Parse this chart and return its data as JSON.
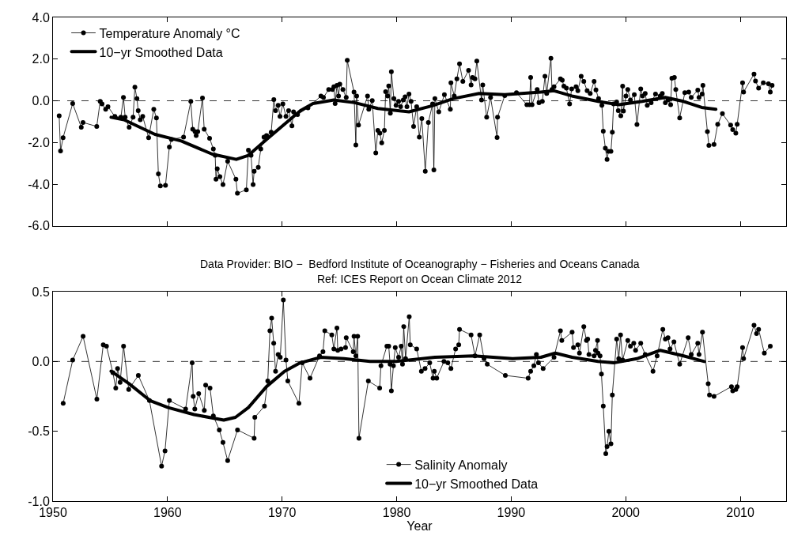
{
  "chart_data": [
    {
      "type": "line",
      "xlim": [
        1950,
        2014
      ],
      "xticks": [
        {
          "value": 1950,
          "label": null
        },
        {
          "value": 1960,
          "label": null
        },
        {
          "value": 1970,
          "label": null
        },
        {
          "value": 1980,
          "label": null
        },
        {
          "value": 1990,
          "label": null
        },
        {
          "value": 2000,
          "label": null
        },
        {
          "value": 2010,
          "label": null
        }
      ],
      "ylim": [
        -6,
        4
      ],
      "yticks": [
        {
          "value": -6,
          "label": "-6.0"
        },
        {
          "value": -4,
          "label": "-4.0"
        },
        {
          "value": -2,
          "label": "-2.0"
        },
        {
          "value": 0,
          "label": "0.0"
        },
        {
          "value": 2,
          "label": "2.0"
        },
        {
          "value": 4,
          "label": "4.0"
        }
      ],
      "tick_labels": "y",
      "legend": "top left",
      "ref_lines": [
        {
          "axis": "y",
          "value": 0,
          "color": "#000000",
          "line_style": "dashed"
        }
      ],
      "series": [
        {
          "name": "Temperature Anomaly °C",
          "color": "#000000",
          "marker": "circle",
          "line_style": "solid",
          "x": [
            1950.54,
            1950.66,
            1950.88,
            1951.72,
            1952.47,
            1952.62,
            1953.82,
            1954.12,
            1954.28,
            1954.6,
            1954.8,
            1955.4,
            1955.93,
            1956.15,
            1956.3,
            1956.65,
            1956.99,
            1957.15,
            1957.33,
            1957.44,
            1957.62,
            1957.83,
            1958.35,
            1958.8,
            1959.03,
            1959.2,
            1959.37,
            1959.82,
            1960.16,
            1960.34,
            1961.4,
            1962.03,
            1962.2,
            1962.4,
            1962.5,
            1962.64,
            1963.05,
            1963.2,
            1963.67,
            1964.0,
            1964.16,
            1964.23,
            1964.34,
            1964.57,
            1964.84,
            1965.25,
            1965.97,
            1966.1,
            1966.88,
            1967.06,
            1967.29,
            1967.47,
            1967.56,
            1967.92,
            1968.14,
            1968.42,
            1968.64,
            1969.05,
            1969.28,
            1969.43,
            1969.66,
            1969.82,
            1970.07,
            1970.34,
            1970.57,
            1970.86,
            1971.0,
            1971.35,
            1972.26,
            1973.39,
            1973.61,
            1974.07,
            1974.4,
            1974.52,
            1974.63,
            1974.79,
            1974.93,
            1975.04,
            1975.31,
            1975.6,
            1975.69,
            1976.28,
            1976.44,
            1976.51,
            1976.67,
            1977.46,
            1977.57,
            1977.87,
            1978.18,
            1978.36,
            1978.54,
            1978.7,
            1978.93,
            1979.04,
            1979.22,
            1979.31,
            1979.45,
            1979.54,
            1979.76,
            1979.95,
            1980.17,
            1980.35,
            1980.58,
            1980.74,
            1980.9,
            1981.08,
            1981.26,
            1981.48,
            1981.75,
            1981.98,
            1982.2,
            1982.5,
            1982.77,
            1983.14,
            1983.25,
            1983.34,
            1983.68,
            1984.17,
            1984.69,
            1984.74,
            1985.03,
            1985.26,
            1985.49,
            1985.78,
            1986.28,
            1986.5,
            1986.62,
            1986.84,
            1987.0,
            1987.41,
            1987.52,
            1987.86,
            1988.2,
            1988.77,
            1988.81,
            1989.44,
            1990.46,
            1991.37,
            1991.59,
            1991.7,
            1991.82,
            1992.27,
            1992.43,
            1992.72,
            1992.95,
            1993.1,
            1993.47,
            1993.56,
            1993.74,
            1994.3,
            1994.46,
            1994.6,
            1994.82,
            1995.1,
            1995.28,
            1995.66,
            1995.82,
            1996.11,
            1996.34,
            1996.63,
            1996.9,
            1997.24,
            1997.4,
            1997.63,
            1997.92,
            1998.04,
            1998.22,
            1998.37,
            1998.49,
            1998.71,
            1998.83,
            1998.94,
            1999.21,
            1999.35,
            1999.57,
            1999.73,
            1999.8,
            2000.02,
            2000.18,
            2000.41,
            2000.75,
            2000.98,
            2001.31,
            2001.47,
            2001.7,
            2001.88,
            2002.22,
            2002.6,
            2003.01,
            2003.19,
            2003.46,
            2003.69,
            2003.92,
            2004.03,
            2004.25,
            2004.37,
            2004.71,
            2005.16,
            2005.5,
            2005.72,
            2006.29,
            2006.4,
            2006.67,
            2006.74,
            2007.13,
            2007.26,
            2007.71,
            2008.03,
            2008.44,
            2009.16,
            2009.34,
            2009.61,
            2009.73,
            2010.2,
            2010.29,
            2011.2,
            2011.33,
            2011.6,
            2012.01,
            2012.46,
            2012.62,
            2012.78
          ],
          "values": [
            -0.72,
            -2.41,
            -1.77,
            -0.13,
            -1.27,
            -1.04,
            -1.23,
            -0.03,
            -0.15,
            -0.41,
            -0.28,
            -0.75,
            -0.79,
            0.16,
            -0.79,
            -1.27,
            -0.79,
            0.65,
            0.1,
            -0.47,
            -0.91,
            -0.75,
            -1.77,
            -0.41,
            -0.82,
            -3.51,
            -4.08,
            -4.06,
            -2.22,
            -1.86,
            -1.74,
            -0.03,
            -1.36,
            -1.48,
            -1.67,
            -1.48,
            0.13,
            -1.36,
            -1.8,
            -2.31,
            -2.62,
            -3.76,
            -3.26,
            -3.64,
            -4.02,
            -2.9,
            -3.76,
            -4.44,
            -4.27,
            -2.37,
            -2.62,
            -4.02,
            -3.38,
            -3.19,
            -2.31,
            -1.74,
            -1.67,
            -1.51,
            0.06,
            -0.47,
            -0.22,
            -0.75,
            -0.15,
            -0.75,
            -0.47,
            -1.2,
            -0.53,
            -0.66,
            -0.34,
            0.23,
            0.16,
            0.54,
            0.54,
            0.67,
            -0.13,
            0.74,
            0.23,
            0.8,
            0.54,
            0.16,
            1.94,
            0.42,
            -2.12,
            0.23,
            -1.17,
            0.23,
            -0.41,
            0.01,
            -2.5,
            -1.42,
            -1.55,
            -2.02,
            -1.42,
            0.44,
            0.23,
            0.71,
            -0.6,
            1.39,
            0.1,
            -0.22,
            -0.03,
            -0.28,
            0.04,
            0.19,
            -0.28,
            0.32,
            -0.03,
            -1.23,
            -0.28,
            -1.74,
            -0.85,
            -3.38,
            -1.04,
            -0.15,
            -3.32,
            0.1,
            -0.53,
            0.29,
            -0.41,
            0.86,
            0.23,
            1.05,
            1.77,
            0.93,
            1.46,
            0.76,
            1.12,
            1.05,
            1.91,
            0.04,
            0.76,
            -0.79,
            0.16,
            -1.76,
            -0.79,
            0.25,
            0.39,
            -0.19,
            -0.19,
            1.12,
            -0.19,
            0.54,
            -0.09,
            -0.03,
            1.18,
            0.35,
            2.04,
            0.54,
            0.67,
            1.05,
            0.99,
            0.7,
            0.61,
            -0.15,
            0.57,
            0.67,
            0.48,
            1.18,
            0.93,
            0.48,
            0.35,
            0.93,
            0.52,
            0.1,
            -0.22,
            -1.46,
            -2.27,
            -2.81,
            -2.43,
            -2.43,
            -1.51,
            -0.15,
            -0.06,
            -0.47,
            -0.72,
            0.7,
            -0.49,
            0.23,
            0.54,
            0.04,
            0.29,
            -1.14,
            0.57,
            0.23,
            0.35,
            -0.22,
            -0.09,
            0.32,
            0.23,
            0.35,
            -0.09,
            0.04,
            -0.19,
            1.08,
            1.12,
            0.54,
            -0.82,
            0.39,
            0.42,
            0.16,
            0.51,
            0.16,
            0.32,
            0.74,
            -1.48,
            -2.14,
            -2.09,
            -1.13,
            -0.62,
            -1.17,
            -1.38,
            -1.55,
            -1.13,
            0.86,
            0.42,
            1.28,
            0.95,
            0.61,
            0.86,
            0.82,
            0.42,
            0.74
          ]
        },
        {
          "name": "10−yr Smoothed Data",
          "color": "#000000",
          "marker": "none",
          "line_style": "solid",
          "x": [
            1955.07,
            1956.2,
            1958.9,
            1961.2,
            1963.9,
            1966.0,
            1967.06,
            1968.64,
            1971.6,
            1972.7,
            1974.52,
            1976.33,
            1978.36,
            1981.08,
            1983.1,
            1984.92,
            1987.2,
            1989.44,
            1992.6,
            1993.74,
            1995.3,
            1997.6,
            1999.4,
            2001.43,
            2003.46,
            2005.05,
            2006.63,
            2007.87
          ],
          "values": [
            -0.79,
            -0.91,
            -1.61,
            -1.93,
            -2.56,
            -2.81,
            -2.62,
            -1.86,
            -0.47,
            -0.13,
            0.04,
            -0.09,
            -0.37,
            -0.53,
            -0.24,
            0.1,
            0.35,
            0.29,
            0.42,
            0.48,
            0.23,
            -0.03,
            -0.19,
            -0.03,
            0.16,
            -0.03,
            -0.32,
            -0.41
          ]
        }
      ]
    },
    {
      "type": "line",
      "title": "Data Provider: BIO −  Bedford Institute of Oceanography − Fisheries and Oceans Canada",
      "subtitle": "Ref: ICES Report on Ocean Climate 2012",
      "xlabel": "Year",
      "xlim": [
        1950,
        2014
      ],
      "xticks": [
        1950,
        1960,
        1970,
        1980,
        1990,
        2000,
        2010
      ],
      "ylim": [
        -1,
        0.5
      ],
      "yticks": [
        {
          "value": -1,
          "label": "-1.0"
        },
        {
          "value": -0.5,
          "label": "-0.5"
        },
        {
          "value": 0,
          "label": "0.0"
        },
        {
          "value": 0.5,
          "label": "0.5"
        }
      ],
      "legend": "bottom",
      "ref_lines": [
        {
          "axis": "y",
          "value": 0,
          "color": "#000000",
          "line_style": "dashed"
        }
      ],
      "series": [
        {
          "name": "Salinity Anomaly",
          "color": "#000000",
          "marker": "circle",
          "line_style": "solid",
          "x": [
            1950.89,
            1951.72,
            1952.63,
            1953.83,
            1954.39,
            1954.67,
            1955.23,
            1955.48,
            1955.64,
            1955.86,
            1956.16,
            1956.61,
            1957.45,
            1958.42,
            1959.48,
            1959.78,
            1960.16,
            1961.58,
            1962.15,
            1962.24,
            1962.38,
            1962.72,
            1963.21,
            1963.33,
            1963.71,
            1964.0,
            1964.52,
            1964.84,
            1965.25,
            1966.11,
            1967.56,
            1967.62,
            1968.46,
            1968.75,
            1968.94,
            1969.09,
            1969.27,
            1969.43,
            1969.66,
            1969.84,
            1970.11,
            1970.34,
            1970.5,
            1971.47,
            1971.76,
            1972.44,
            1973.27,
            1973.57,
            1973.73,
            1974.34,
            1974.52,
            1974.79,
            1974.86,
            1975.15,
            1975.54,
            1975.6,
            1976.21,
            1976.28,
            1976.44,
            1976.6,
            1976.71,
            1977.53,
            1978.52,
            1978.63,
            1979.15,
            1979.31,
            1979.43,
            1979.54,
            1979.72,
            1979.88,
            1980.17,
            1980.4,
            1980.51,
            1980.62,
            1980.78,
            1981.1,
            1981.19,
            1981.75,
            1982.16,
            1982.48,
            1982.89,
            1983.18,
            1983.29,
            1983.5,
            1984.13,
            1984.47,
            1984.74,
            1985.15,
            1985.42,
            1985.49,
            1986.5,
            1986.84,
            1987.25,
            1987.63,
            1987.91,
            1989.49,
            1991.48,
            1991.7,
            1991.98,
            1992.2,
            1992.38,
            1992.79,
            1993.74,
            1994.3,
            1994.42,
            1995.32,
            1995.44,
            1995.82,
            1995.96,
            1996.34,
            1996.57,
            1996.68,
            1996.79,
            1997.24,
            1997.36,
            1997.54,
            1997.58,
            1997.76,
            1997.88,
            1998.04,
            1998.26,
            1998.37,
            1998.53,
            1998.71,
            1998.83,
            1999.21,
            1999.39,
            1999.55,
            1999.73,
            2000.18,
            2000.41,
            2000.7,
            2000.86,
            2001.31,
            2001.7,
            2002.38,
            2002.74,
            2003.24,
            2003.46,
            2003.69,
            2003.87,
            2004.21,
            2004.71,
            2005.45,
            2005.72,
            2006.29,
            2006.4,
            2006.7,
            2007.2,
            2007.31,
            2007.71,
            2009.23,
            2009.34,
            2009.61,
            2009.73,
            2010.2,
            2010.29,
            2011.2,
            2011.42,
            2011.6,
            2012.1,
            2012.62
          ],
          "values": [
            -0.3,
            0.01,
            0.18,
            -0.27,
            0.12,
            0.11,
            -0.08,
            -0.19,
            -0.05,
            -0.15,
            0.11,
            -0.2,
            -0.1,
            -0.28,
            -0.75,
            -0.64,
            -0.28,
            -0.34,
            -0.01,
            -0.25,
            -0.34,
            -0.23,
            -0.35,
            -0.17,
            -0.19,
            -0.39,
            -0.49,
            -0.58,
            -0.71,
            -0.49,
            -0.55,
            -0.4,
            -0.32,
            -0.14,
            0.22,
            0.31,
            0.13,
            -0.07,
            0.05,
            0.03,
            0.44,
            0.01,
            -0.14,
            -0.3,
            -0.01,
            -0.12,
            0.04,
            0.07,
            0.22,
            0.19,
            0.09,
            0.24,
            0.08,
            0.09,
            0.1,
            0.17,
            0.07,
            0.18,
            0.04,
            0.18,
            -0.55,
            -0.14,
            -0.19,
            -0.03,
            0.11,
            0.11,
            -0.02,
            -0.21,
            -0.03,
            0.1,
            0.03,
            0.11,
            -0.02,
            0.25,
            0.02,
            0.32,
            0.12,
            0.09,
            -0.07,
            -0.05,
            -0.01,
            -0.12,
            -0.07,
            -0.12,
            0.0,
            -0.01,
            -0.05,
            0.09,
            0.12,
            0.23,
            0.19,
            0.04,
            0.19,
            0.02,
            -0.02,
            -0.1,
            -0.12,
            -0.07,
            -0.03,
            0.05,
            -0.01,
            -0.05,
            0.03,
            0.22,
            0.15,
            0.21,
            0.1,
            0.12,
            0.06,
            0.25,
            0.15,
            0.16,
            0.05,
            0.04,
            0.08,
            0.15,
            0.06,
            0.04,
            -0.09,
            -0.32,
            -0.66,
            -0.61,
            -0.5,
            -0.59,
            -0.24,
            0.16,
            0.02,
            0.19,
            0.01,
            0.15,
            0.11,
            0.13,
            0.08,
            0.13,
            0.05,
            -0.07,
            0.04,
            0.23,
            0.16,
            0.17,
            0.09,
            0.14,
            -0.02,
            0.17,
            0.05,
            0.13,
            0.05,
            0.21,
            -0.16,
            -0.24,
            -0.25,
            -0.18,
            -0.21,
            -0.2,
            -0.18,
            0.1,
            0.02,
            0.26,
            0.2,
            0.23,
            0.06,
            0.11
          ]
        },
        {
          "name": "10−yr Smoothed Data",
          "color": "#000000",
          "marker": "none",
          "line_style": "solid",
          "x": [
            1955.07,
            1956.66,
            1958.47,
            1960.05,
            1962.31,
            1964.91,
            1965.93,
            1967.06,
            1968.64,
            1970.22,
            1971.58,
            1973.39,
            1975.42,
            1977.68,
            1979.95,
            1983.34,
            1986.73,
            1990.12,
            1992.6,
            1993.85,
            1995.32,
            1997.58,
            1998.94,
            2000.98,
            2003.01,
            2005.05,
            2006.86
          ],
          "values": [
            -0.07,
            -0.16,
            -0.28,
            -0.33,
            -0.38,
            -0.42,
            -0.4,
            -0.33,
            -0.18,
            -0.07,
            -0.01,
            0.03,
            0.02,
            0.0,
            0.0,
            0.03,
            0.04,
            0.02,
            0.03,
            0.06,
            0.03,
            0.0,
            -0.01,
            0.02,
            0.08,
            0.04,
            0.0
          ]
        }
      ]
    }
  ]
}
